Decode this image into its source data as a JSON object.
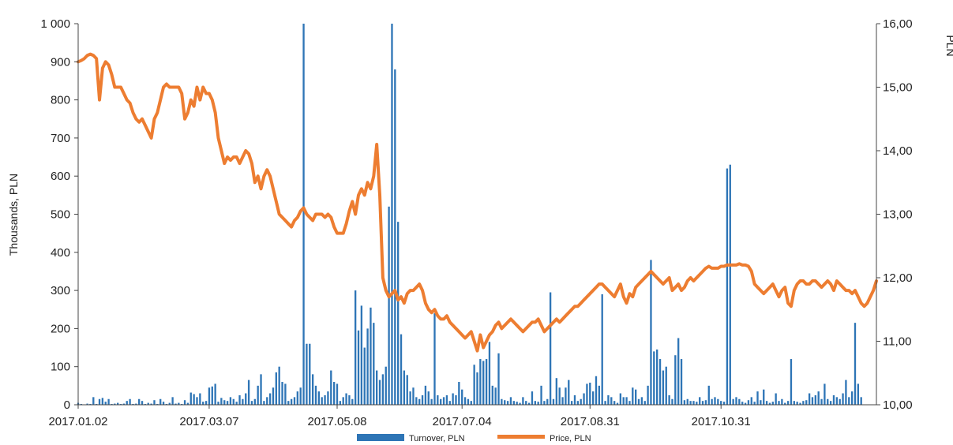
{
  "chart_data": {
    "type": "bar+line",
    "y_left_label": "Thousands, PLN",
    "y_right_label": "PLN",
    "y_left_ticks": [
      "0",
      "100",
      "200",
      "300",
      "400",
      "500",
      "600",
      "700",
      "800",
      "900",
      "1 000"
    ],
    "y_right_ticks": [
      "10,00",
      "11,00",
      "12,00",
      "13,00",
      "14,00",
      "15,00",
      "16,00"
    ],
    "x_ticks": [
      "2017.01.02",
      "2017.03.07",
      "2017.05.08",
      "2017.07.04",
      "2017.08.31",
      "2017.10.31"
    ],
    "ylim_left": [
      0,
      1000
    ],
    "ylim_right": [
      10,
      16
    ],
    "x_tick_positions_index": [
      0,
      43,
      85,
      126,
      168,
      211
    ],
    "grid": false,
    "legend_position": "bottom",
    "series": [
      {
        "name": "Turnover, PLN",
        "axis": "left",
        "color": "#2e75b6",
        "values": [
          5,
          2,
          1,
          3,
          2,
          20,
          2,
          15,
          18,
          8,
          15,
          2,
          3,
          5,
          2,
          3,
          10,
          15,
          2,
          3,
          15,
          10,
          2,
          5,
          3,
          12,
          2,
          15,
          8,
          2,
          5,
          20,
          3,
          5,
          2,
          12,
          5,
          32,
          28,
          20,
          30,
          8,
          10,
          45,
          48,
          55,
          8,
          18,
          12,
          10,
          20,
          15,
          8,
          25,
          15,
          30,
          65,
          10,
          15,
          50,
          80,
          10,
          20,
          30,
          45,
          85,
          100,
          60,
          55,
          10,
          15,
          20,
          35,
          45,
          1000,
          160,
          160,
          80,
          50,
          35,
          20,
          25,
          35,
          90,
          60,
          55,
          10,
          20,
          30,
          25,
          15,
          300,
          195,
          260,
          150,
          200,
          255,
          215,
          90,
          65,
          80,
          100,
          520,
          1000,
          880,
          480,
          185,
          90,
          78,
          35,
          45,
          20,
          15,
          25,
          50,
          35,
          15,
          240,
          25,
          15,
          20,
          25,
          10,
          30,
          25,
          60,
          40,
          20,
          15,
          10,
          105,
          85,
          120,
          115,
          120,
          165,
          50,
          45,
          135,
          15,
          12,
          10,
          20,
          10,
          8,
          5,
          20,
          10,
          5,
          35,
          10,
          8,
          50,
          10,
          15,
          295,
          15,
          70,
          45,
          20,
          45,
          65,
          10,
          25,
          10,
          15,
          30,
          55,
          58,
          35,
          75,
          50,
          290,
          10,
          25,
          20,
          10,
          5,
          30,
          20,
          20,
          10,
          45,
          40,
          15,
          20,
          10,
          50,
          380,
          140,
          145,
          120,
          90,
          100,
          25,
          15,
          130,
          175,
          120,
          12,
          15,
          10,
          10,
          8,
          20,
          10,
          12,
          50,
          15,
          20,
          15,
          10,
          8,
          620,
          630,
          15,
          20,
          15,
          8,
          5,
          12,
          20,
          8,
          35,
          12,
          40,
          10,
          5,
          8,
          30,
          10,
          15,
          5,
          10,
          120,
          10,
          8,
          5,
          10,
          12,
          30,
          20,
          25,
          35,
          15,
          55,
          15,
          10,
          25,
          20,
          15,
          30,
          65,
          20,
          35,
          215,
          55,
          20
        ]
      },
      {
        "name": "Price, PLN",
        "axis": "right",
        "color": "#ed7d31",
        "values": [
          15.4,
          15.42,
          15.45,
          15.5,
          15.52,
          15.5,
          15.45,
          14.8,
          15.3,
          15.4,
          15.35,
          15.2,
          15.0,
          15.0,
          15.0,
          14.9,
          14.8,
          14.75,
          14.6,
          14.5,
          14.45,
          14.5,
          14.4,
          14.3,
          14.2,
          14.5,
          14.6,
          14.8,
          15.0,
          15.05,
          15.0,
          15.0,
          15.0,
          15.0,
          14.9,
          14.5,
          14.6,
          14.8,
          14.7,
          15.0,
          14.8,
          15.0,
          14.9,
          14.9,
          14.8,
          14.6,
          14.2,
          14.0,
          13.8,
          13.9,
          13.85,
          13.9,
          13.9,
          13.8,
          13.9,
          14.0,
          13.95,
          13.8,
          13.5,
          13.6,
          13.4,
          13.6,
          13.7,
          13.6,
          13.4,
          13.2,
          13.0,
          12.95,
          12.9,
          12.85,
          12.8,
          12.9,
          12.95,
          13.05,
          13.1,
          13.0,
          12.95,
          12.9,
          13.0,
          13.0,
          13.0,
          12.95,
          13.0,
          12.95,
          12.8,
          12.7,
          12.7,
          12.7,
          12.85,
          13.05,
          13.2,
          13.0,
          13.3,
          13.4,
          13.3,
          13.5,
          13.4,
          13.6,
          14.1,
          13.3,
          12.0,
          11.8,
          11.7,
          11.75,
          11.8,
          11.65,
          11.7,
          11.6,
          11.75,
          11.8,
          11.8,
          11.85,
          11.9,
          11.8,
          11.6,
          11.5,
          11.45,
          11.5,
          11.4,
          11.35,
          11.35,
          11.4,
          11.3,
          11.25,
          11.2,
          11.15,
          11.1,
          11.05,
          11.1,
          11.15,
          11.0,
          10.85,
          11.1,
          10.9,
          11.0,
          11.1,
          11.15,
          11.25,
          11.3,
          11.2,
          11.25,
          11.3,
          11.35,
          11.3,
          11.25,
          11.2,
          11.15,
          11.2,
          11.25,
          11.3,
          11.3,
          11.35,
          11.25,
          11.15,
          11.2,
          11.25,
          11.3,
          11.35,
          11.3,
          11.35,
          11.4,
          11.45,
          11.5,
          11.55,
          11.55,
          11.6,
          11.65,
          11.7,
          11.75,
          11.8,
          11.85,
          11.9,
          11.9,
          11.85,
          11.8,
          11.75,
          11.7,
          11.8,
          11.9,
          11.7,
          11.6,
          11.75,
          11.7,
          11.85,
          11.9,
          11.95,
          12.0,
          12.05,
          12.1,
          12.05,
          12.0,
          11.95,
          11.9,
          11.95,
          12.0,
          11.8,
          11.85,
          11.9,
          11.8,
          11.85,
          11.95,
          12.0,
          11.95,
          12.0,
          12.05,
          12.1,
          12.15,
          12.18,
          12.15,
          12.15,
          12.15,
          12.18,
          12.18,
          12.2,
          12.2,
          12.2,
          12.2,
          12.22,
          12.2,
          12.2,
          12.18,
          12.1,
          11.9,
          11.85,
          11.8,
          11.75,
          11.8,
          11.85,
          11.9,
          11.8,
          11.7,
          11.8,
          11.85,
          11.6,
          11.55,
          11.8,
          11.9,
          11.95,
          11.95,
          11.9,
          11.9,
          11.95,
          11.95,
          11.9,
          11.85,
          11.9,
          11.95,
          11.9,
          11.8,
          11.95,
          11.9,
          11.85,
          11.8,
          11.8,
          11.75,
          11.8,
          11.7,
          11.6,
          11.55,
          11.6,
          11.7,
          11.8,
          11.95
        ]
      }
    ]
  }
}
